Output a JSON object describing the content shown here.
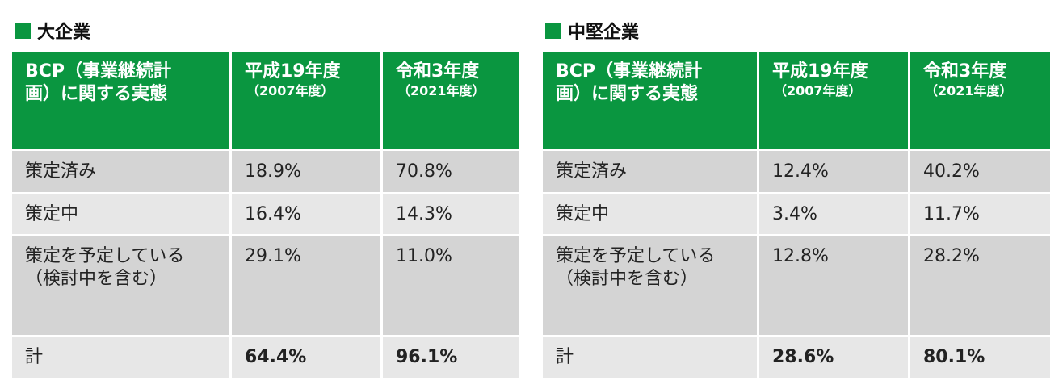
{
  "tables": [
    {
      "title": "大企業",
      "header": [
        [
          "BCP（事業継続計",
          "画）に関する実態"
        ],
        {
          "main": "平成19年度",
          "sub": "（2007年度）"
        },
        {
          "main": "令和3年度",
          "sub": "（2021年度）"
        }
      ],
      "rows": [
        [
          [
            "策定済み"
          ],
          "18.9%",
          "70.8%"
        ],
        [
          [
            "策定中"
          ],
          "16.4%",
          "14.3%"
        ],
        [
          [
            "策定を予定している",
            "（検討中を含む）"
          ],
          "29.1%",
          "11.0%"
        ],
        [
          [
            "計"
          ],
          "64.4%",
          "96.1%"
        ]
      ]
    },
    {
      "title": "中堅企業",
      "header": [
        [
          "BCP（事業継続計",
          "画）に関する実態"
        ],
        {
          "main": "平成19年度",
          "sub": "（2007年度）"
        },
        {
          "main": "令和3年度",
          "sub": "（2021年度）"
        }
      ],
      "rows": [
        [
          [
            "策定済み"
          ],
          "12.4%",
          "40.2%"
        ],
        [
          [
            "策定中"
          ],
          "3.4%",
          "11.7%"
        ],
        [
          [
            "策定を予定している",
            "（検討中を含む）"
          ],
          "12.8%",
          "28.2%"
        ],
        [
          [
            "計"
          ],
          "28.6%",
          "80.1%"
        ]
      ]
    }
  ]
}
